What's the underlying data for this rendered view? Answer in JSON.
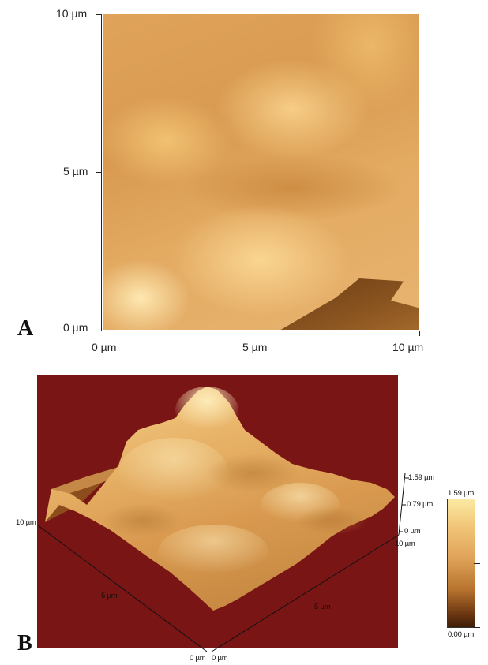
{
  "panel_a": {
    "letter": "A",
    "y_ticks": [
      "10 µm",
      "5 µm",
      "0 µm"
    ],
    "x_ticks": [
      "0 µm",
      "5 µm",
      "10 µm"
    ]
  },
  "panel_b": {
    "letter": "B",
    "z_ticks": [
      "1.59 µm",
      "0.79 µm",
      "0 µm"
    ],
    "left_axis_ticks": [
      "10 µm",
      "5 µm",
      "0 µm"
    ],
    "right_axis_ticks": [
      "10 µm",
      "5 µm",
      "0 µm"
    ],
    "colorbar": {
      "max_label": "1.59 µm",
      "min_label": "0.00 µm"
    }
  },
  "colors": {
    "background_3d": "#7a1515",
    "surface_light": "#fbeaa2",
    "surface_mid": "#e0a45a",
    "surface_dark": "#3d1d07"
  }
}
